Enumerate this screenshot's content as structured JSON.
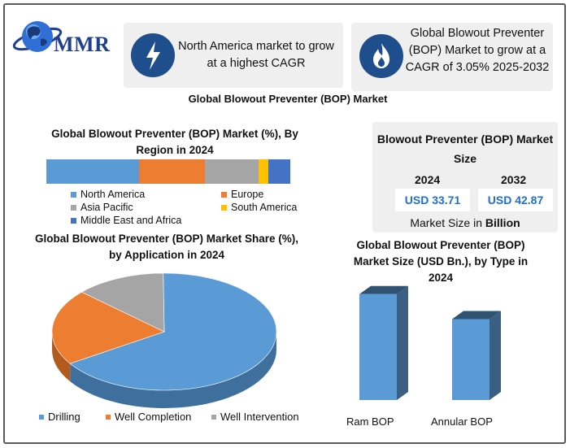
{
  "brand": {
    "logo_text": "MMR"
  },
  "highlights": [
    {
      "icon": "lightning-icon",
      "text": "North America market to grow at a highest CAGR"
    },
    {
      "icon": "flame-icon",
      "text": "Global Blowout Preventer (BOP) Market to grow at a CAGR of 3.05% 2025-2032"
    }
  ],
  "main_title": "Global Blowout Preventer (BOP) Market",
  "market_size": {
    "title": "Blowout Preventer (BOP) Market Size",
    "year1": "2024",
    "value1": "USD 33.71",
    "year2": "2032",
    "value2": "USD 42.87",
    "unit_prefix": "Market Size in ",
    "unit_bold": "Billion"
  },
  "colors": {
    "north_america": "#5b9bd5",
    "europe": "#ed7d31",
    "asia_pacific": "#a5a5a5",
    "south_america": "#ffc000",
    "mea": "#4472c4",
    "bar": "#5b9bd5",
    "bar_dark": "#3a5f82"
  },
  "chart_data": [
    {
      "type": "bar",
      "stacked": true,
      "orientation": "horizontal",
      "title": "Global Blowout Preventer (BOP) Market (%), By Region in 2024",
      "series": [
        {
          "name": "North America",
          "values": [
            38
          ]
        },
        {
          "name": "Europe",
          "values": [
            27
          ]
        },
        {
          "name": "Asia Pacific",
          "values": [
            22
          ]
        },
        {
          "name": "South America",
          "values": [
            4
          ]
        },
        {
          "name": "Middle East and Africa",
          "values": [
            9
          ]
        }
      ],
      "legend": "bottom"
    },
    {
      "type": "pie",
      "title": "Global Blowout Preventer (BOP) Market Share (%), by Application in 2024",
      "labels": [
        "Drilling",
        "Well Completion",
        "Well Intervention"
      ],
      "values": [
        66,
        21,
        13
      ],
      "legend": "bottom"
    },
    {
      "type": "bar",
      "title": "Global Blowout Preventer (BOP) Market Size (USD Bn.), by Type in 2024",
      "categories": [
        "Ram BOP",
        "Annular BOP"
      ],
      "values": [
        19.1,
        14.6
      ],
      "ylim": [
        0,
        22
      ]
    }
  ]
}
